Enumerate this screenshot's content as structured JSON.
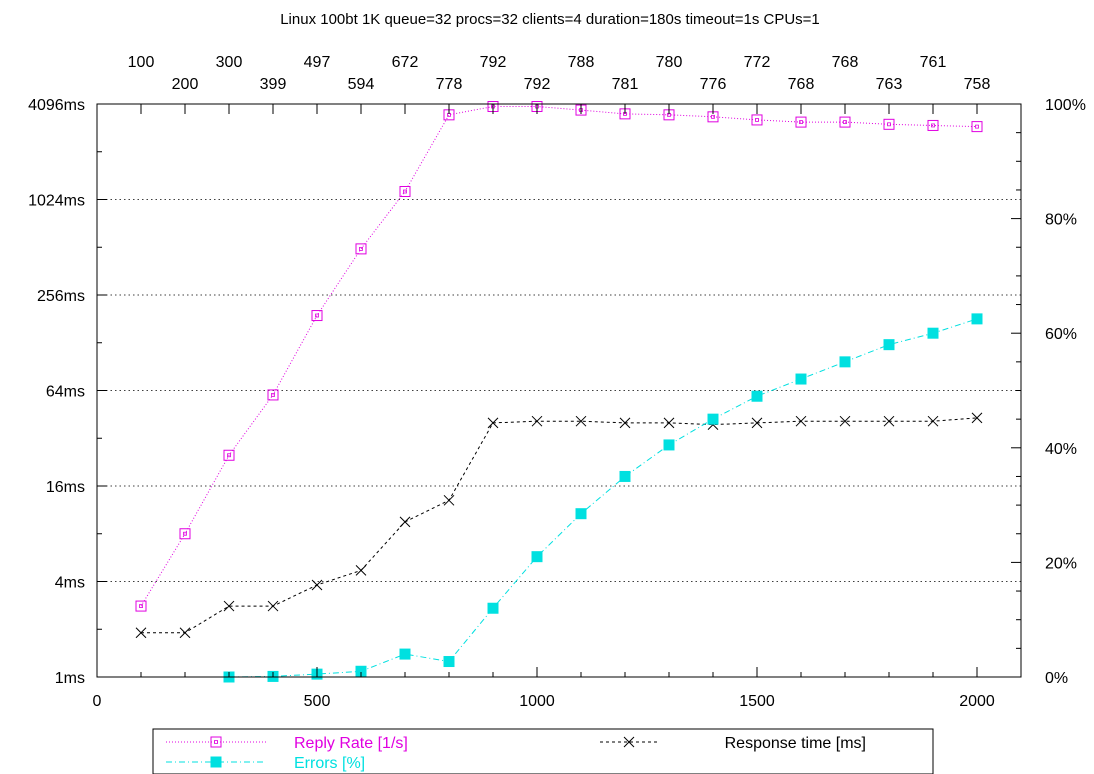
{
  "chart_data": {
    "type": "line",
    "title": "Linux 100bt 1K queue=32 procs=32 clients=4 duration=180s timeout=1s CPUs=1",
    "x": [
      100,
      200,
      300,
      400,
      500,
      600,
      700,
      800,
      900,
      1000,
      1100,
      1200,
      1300,
      1400,
      1500,
      1600,
      1700,
      1800,
      1900,
      2000
    ],
    "xlim": [
      0,
      2100
    ],
    "xticks": [
      "0",
      "500",
      "1000",
      "1500",
      "2000"
    ],
    "xtick_values": [
      0,
      500,
      1000,
      1500,
      2000
    ],
    "top_axis_labels": [
      "100",
      "200",
      "300",
      "399",
      "497",
      "594",
      "672",
      "778",
      "792",
      "792",
      "788",
      "781",
      "780",
      "776",
      "772",
      "768",
      "768",
      "763",
      "761",
      "758"
    ],
    "y_left": {
      "scale": "log2",
      "lim": [
        1,
        4096
      ],
      "ticks": [
        "1ms",
        "4ms",
        "16ms",
        "64ms",
        "256ms",
        "1024ms",
        "4096ms"
      ],
      "tick_values": [
        1,
        4,
        16,
        64,
        256,
        1024,
        4096
      ]
    },
    "y_right": {
      "lim": [
        0,
        100
      ],
      "ticks": [
        "0%",
        "20%",
        "40%",
        "60%",
        "80%",
        "100%"
      ],
      "tick_values": [
        0,
        20,
        40,
        60,
        80,
        100
      ]
    },
    "grid": "horizontal dotted",
    "series": [
      {
        "name": "Reply Rate [1/s]",
        "axis": "left",
        "color": "#e000e0",
        "marker": "open-square",
        "line": "dotted",
        "x": [
          100,
          200,
          300,
          400,
          500,
          600,
          700,
          800,
          900,
          1000,
          1100,
          1200,
          1300,
          1400,
          1500,
          1600,
          1700,
          1800,
          1900,
          2000
        ],
        "values": [
          2.8,
          8,
          25,
          60,
          190,
          500,
          1150,
          3500,
          3950,
          3950,
          3750,
          3550,
          3500,
          3400,
          3250,
          3150,
          3150,
          3050,
          3000,
          2950
        ]
      },
      {
        "name": "Response time [ms]",
        "axis": "left",
        "color": "#000000",
        "marker": "cross",
        "line": "dashed",
        "x": [
          100,
          200,
          300,
          400,
          500,
          600,
          700,
          800,
          900,
          1000,
          1100,
          1200,
          1300,
          1400,
          1500,
          1600,
          1700,
          1800,
          1900,
          2000
        ],
        "values": [
          1.9,
          1.9,
          2.8,
          2.8,
          3.8,
          4.7,
          9.5,
          13,
          40,
          41,
          41,
          40,
          40,
          39,
          40,
          41,
          41,
          41,
          41,
          43
        ]
      },
      {
        "name": "Errors [%]",
        "axis": "right",
        "color": "#00e0e0",
        "marker": "filled-square",
        "line": "dash-dot",
        "x": [
          300,
          400,
          500,
          600,
          700,
          800,
          900,
          1000,
          1100,
          1200,
          1300,
          1400,
          1500,
          1600,
          1700,
          1800,
          1900,
          2000
        ],
        "values": [
          0,
          0.1,
          0.5,
          1.0,
          4.0,
          2.7,
          12,
          21,
          28.5,
          35,
          40.5,
          45,
          49,
          52,
          55,
          58,
          60,
          62.5
        ]
      }
    ],
    "legend": "bottom"
  }
}
